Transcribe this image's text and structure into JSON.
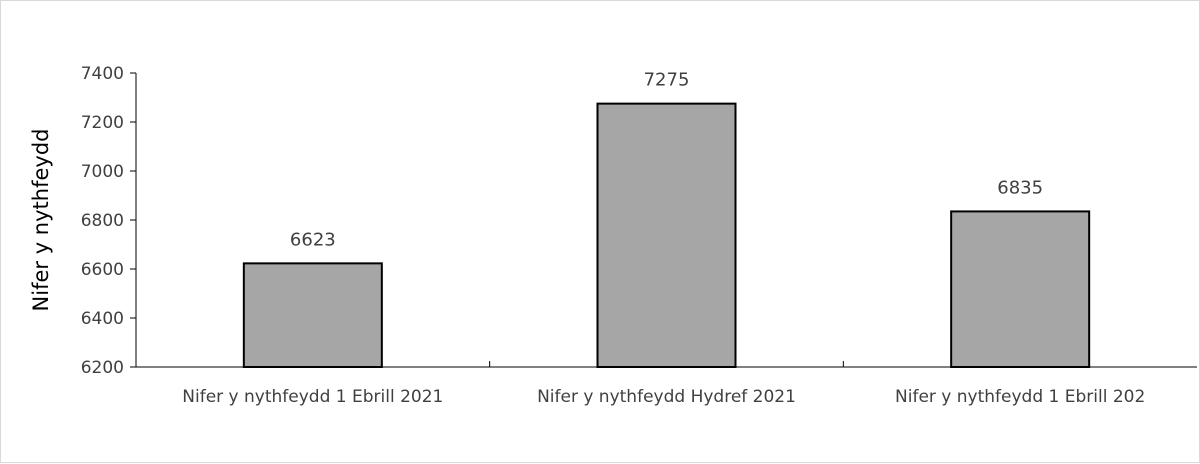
{
  "chart_data": {
    "type": "bar",
    "title": "",
    "xlabel": "",
    "ylabel": "Nifer y nythfeydd",
    "categories": [
      "Nifer y nythfeydd 1 Ebrill 2021",
      "Nifer y nythfeydd Hydref 2021",
      "Nifer y nythfeydd 1 Ebrill 202"
    ],
    "values": [
      6623,
      7275,
      6835
    ],
    "data_labels": [
      "6623",
      "7275",
      "6835"
    ],
    "ylim": [
      6200,
      7400
    ],
    "yticks": [
      6200,
      6400,
      6600,
      6800,
      7000,
      7200,
      7400
    ],
    "ytick_labels": [
      "6200",
      "6400",
      "6600",
      "6800",
      "7000",
      "7200",
      "7400"
    ],
    "grid": false,
    "legend": "none",
    "bar_color": "#a6a6a6",
    "bar_edge_color": "#000000",
    "axis_color": "#000000"
  }
}
